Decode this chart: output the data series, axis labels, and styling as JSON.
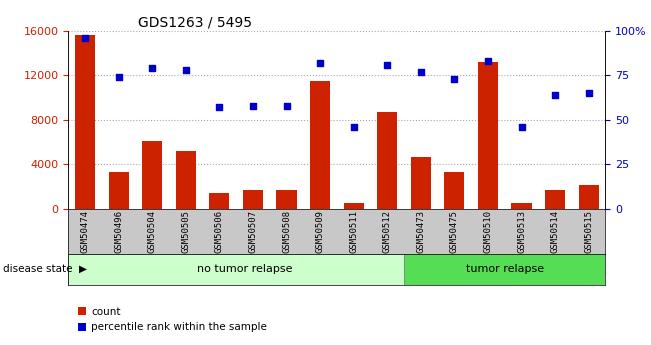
{
  "title": "GDS1263 / 5495",
  "samples": [
    "GSM50474",
    "GSM50496",
    "GSM50504",
    "GSM50505",
    "GSM50506",
    "GSM50507",
    "GSM50508",
    "GSM50509",
    "GSM50511",
    "GSM50512",
    "GSM50473",
    "GSM50475",
    "GSM50510",
    "GSM50513",
    "GSM50514",
    "GSM50515"
  ],
  "counts": [
    15600,
    3300,
    6100,
    5200,
    1400,
    1700,
    1700,
    11500,
    500,
    8700,
    4700,
    3300,
    13200,
    500,
    1700,
    2100
  ],
  "percentiles": [
    96,
    74,
    79,
    78,
    57,
    58,
    58,
    82,
    46,
    81,
    77,
    73,
    83,
    46,
    64,
    65
  ],
  "group1_label": "no tumor relapse",
  "group2_label": "tumor relapse",
  "group1_count": 10,
  "group2_count": 6,
  "disease_state_label": "disease state",
  "ylim_left": [
    0,
    16000
  ],
  "ylim_right": [
    0,
    100
  ],
  "left_ticks": [
    0,
    4000,
    8000,
    12000,
    16000
  ],
  "right_ticks": [
    0,
    25,
    50,
    75,
    100
  ],
  "right_tick_labels": [
    "0",
    "25",
    "50",
    "75",
    "100%"
  ],
  "bar_color": "#cc2200",
  "scatter_color": "#0000cc",
  "group1_bg": "#ccffcc",
  "group2_bg": "#55dd55",
  "label_bg": "#c8c8c8",
  "grid_color": "#aaaaaa",
  "legend_count_label": "count",
  "legend_pct_label": "percentile rank within the sample"
}
